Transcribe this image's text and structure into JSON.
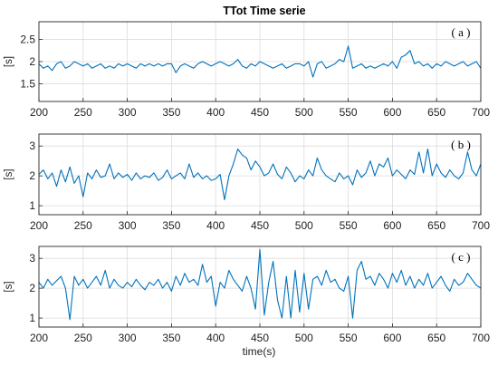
{
  "chart_data": {
    "type": "line",
    "title": "TTot Time serie",
    "xlabel": "time(s)",
    "xlim": [
      200,
      700
    ],
    "xticks": [
      200,
      250,
      300,
      350,
      400,
      450,
      500,
      550,
      600,
      650,
      700
    ],
    "grid": true,
    "color": "#0072BD",
    "panels": [
      {
        "label": "( a )",
        "ylabel": "[s]",
        "ylim": [
          1.1,
          2.9
        ],
        "yticks": [
          1.5,
          2,
          2.5
        ],
        "x": [
          200,
          205,
          210,
          215,
          220,
          225,
          230,
          235,
          240,
          245,
          250,
          255,
          260,
          265,
          270,
          275,
          280,
          285,
          290,
          295,
          300,
          305,
          310,
          315,
          320,
          325,
          330,
          335,
          340,
          345,
          350,
          355,
          360,
          365,
          370,
          375,
          380,
          385,
          390,
          395,
          400,
          405,
          410,
          415,
          420,
          425,
          430,
          435,
          440,
          445,
          450,
          455,
          460,
          465,
          470,
          475,
          480,
          485,
          490,
          495,
          500,
          505,
          510,
          515,
          520,
          525,
          530,
          535,
          540,
          545,
          550,
          555,
          560,
          565,
          570,
          575,
          580,
          585,
          590,
          595,
          600,
          605,
          610,
          615,
          620,
          625,
          630,
          635,
          640,
          645,
          650,
          655,
          660,
          665,
          670,
          675,
          680,
          685,
          690,
          695,
          700
        ],
        "values": [
          1.95,
          1.85,
          1.9,
          1.8,
          1.95,
          2.0,
          1.85,
          1.9,
          2.0,
          1.95,
          1.9,
          1.95,
          1.85,
          1.9,
          1.95,
          1.85,
          1.9,
          1.85,
          1.95,
          1.9,
          1.95,
          1.9,
          1.85,
          1.95,
          1.9,
          1.95,
          1.9,
          1.95,
          1.9,
          1.95,
          1.95,
          1.75,
          1.9,
          1.95,
          1.9,
          1.85,
          1.95,
          2.0,
          1.95,
          1.9,
          1.95,
          2.0,
          1.95,
          1.9,
          1.95,
          2.05,
          1.9,
          1.85,
          1.95,
          1.9,
          2.0,
          1.95,
          1.9,
          1.85,
          1.9,
          1.95,
          1.85,
          1.9,
          1.95,
          1.95,
          1.9,
          2.0,
          1.65,
          1.95,
          2.0,
          1.85,
          1.9,
          1.95,
          2.05,
          2.0,
          2.35,
          1.85,
          1.9,
          1.95,
          1.85,
          1.9,
          1.85,
          1.9,
          1.95,
          1.9,
          2.0,
          1.85,
          2.1,
          2.15,
          2.25,
          1.95,
          2.0,
          1.9,
          1.95,
          1.85,
          1.95,
          1.9,
          2.0,
          1.95,
          1.9,
          1.95,
          2.0,
          1.9,
          1.95,
          2.0,
          1.85
        ]
      },
      {
        "label": "( b )",
        "ylabel": "[s]",
        "ylim": [
          0.7,
          3.4
        ],
        "yticks": [
          1,
          2,
          3
        ],
        "x": [
          200,
          205,
          210,
          215,
          220,
          225,
          230,
          235,
          240,
          245,
          250,
          255,
          260,
          265,
          270,
          275,
          280,
          285,
          290,
          295,
          300,
          305,
          310,
          315,
          320,
          325,
          330,
          335,
          340,
          345,
          350,
          355,
          360,
          365,
          370,
          375,
          380,
          385,
          390,
          395,
          400,
          405,
          410,
          415,
          420,
          425,
          430,
          435,
          440,
          445,
          450,
          455,
          460,
          465,
          470,
          475,
          480,
          485,
          490,
          495,
          500,
          505,
          510,
          515,
          520,
          525,
          530,
          535,
          540,
          545,
          550,
          555,
          560,
          565,
          570,
          575,
          580,
          585,
          590,
          595,
          600,
          605,
          610,
          615,
          620,
          625,
          630,
          635,
          640,
          645,
          650,
          655,
          660,
          665,
          670,
          675,
          680,
          685,
          690,
          695,
          700
        ],
        "values": [
          2.05,
          2.2,
          1.9,
          2.1,
          1.65,
          2.2,
          1.8,
          2.3,
          1.75,
          2.0,
          1.3,
          2.1,
          1.9,
          2.2,
          1.95,
          2.0,
          2.4,
          1.9,
          2.1,
          1.95,
          2.05,
          1.85,
          2.1,
          1.9,
          2.0,
          1.95,
          2.1,
          1.85,
          1.95,
          2.2,
          1.9,
          2.0,
          2.1,
          1.9,
          2.4,
          1.95,
          2.1,
          1.9,
          2.0,
          1.85,
          1.9,
          2.05,
          1.2,
          2.0,
          2.4,
          2.9,
          2.7,
          2.6,
          2.2,
          2.5,
          2.3,
          2.0,
          2.1,
          2.4,
          2.05,
          1.9,
          2.3,
          2.1,
          1.8,
          2.0,
          1.9,
          2.2,
          2.0,
          2.6,
          2.2,
          2.0,
          1.9,
          1.8,
          2.1,
          1.9,
          2.0,
          1.7,
          2.2,
          1.95,
          2.1,
          2.5,
          2.0,
          2.4,
          2.3,
          2.6,
          2.0,
          2.2,
          2.05,
          1.9,
          2.2,
          2.05,
          2.8,
          2.1,
          2.9,
          2.0,
          2.4,
          2.1,
          1.95,
          2.2,
          2.0,
          1.9,
          2.1,
          2.8,
          2.2,
          2.0,
          2.4
        ]
      },
      {
        "label": "( c )",
        "ylabel": "[s]",
        "ylim": [
          0.7,
          3.4
        ],
        "yticks": [
          1,
          2,
          3
        ],
        "x": [
          200,
          205,
          210,
          215,
          220,
          225,
          230,
          235,
          240,
          245,
          250,
          255,
          260,
          265,
          270,
          275,
          280,
          285,
          290,
          295,
          300,
          305,
          310,
          315,
          320,
          325,
          330,
          335,
          340,
          345,
          350,
          355,
          360,
          365,
          370,
          375,
          380,
          385,
          390,
          395,
          400,
          405,
          410,
          415,
          420,
          425,
          430,
          435,
          440,
          445,
          450,
          455,
          460,
          465,
          470,
          475,
          480,
          485,
          490,
          495,
          500,
          505,
          510,
          515,
          520,
          525,
          530,
          535,
          540,
          545,
          550,
          555,
          560,
          565,
          570,
          575,
          580,
          585,
          590,
          595,
          600,
          605,
          610,
          615,
          620,
          625,
          630,
          635,
          640,
          645,
          650,
          655,
          660,
          665,
          670,
          675,
          680,
          685,
          690,
          695,
          700
        ],
        "values": [
          2.2,
          2.0,
          2.3,
          2.1,
          2.25,
          2.4,
          2.0,
          0.95,
          2.4,
          2.1,
          2.3,
          2.0,
          2.2,
          2.4,
          2.1,
          2.6,
          2.0,
          2.3,
          2.1,
          2.0,
          2.2,
          2.05,
          2.3,
          2.1,
          1.95,
          2.2,
          2.1,
          2.3,
          2.0,
          2.2,
          1.9,
          2.4,
          2.1,
          2.5,
          2.2,
          2.3,
          2.1,
          2.8,
          2.2,
          2.4,
          1.4,
          2.2,
          2.0,
          2.6,
          2.3,
          2.1,
          1.9,
          2.4,
          2.0,
          1.3,
          3.3,
          1.1,
          2.2,
          2.9,
          1.6,
          1.0,
          2.4,
          1.0,
          2.6,
          1.2,
          2.5,
          1.3,
          2.3,
          2.4,
          2.1,
          2.6,
          2.2,
          2.3,
          2.0,
          1.9,
          2.4,
          1.0,
          2.6,
          2.9,
          2.3,
          2.4,
          2.1,
          2.5,
          2.3,
          2.0,
          2.5,
          2.2,
          2.6,
          2.1,
          2.4,
          2.0,
          2.3,
          2.1,
          2.5,
          2.0,
          2.2,
          2.4,
          2.1,
          1.9,
          2.3,
          2.1,
          2.2,
          2.5,
          2.3,
          2.1,
          2.0
        ]
      }
    ]
  }
}
